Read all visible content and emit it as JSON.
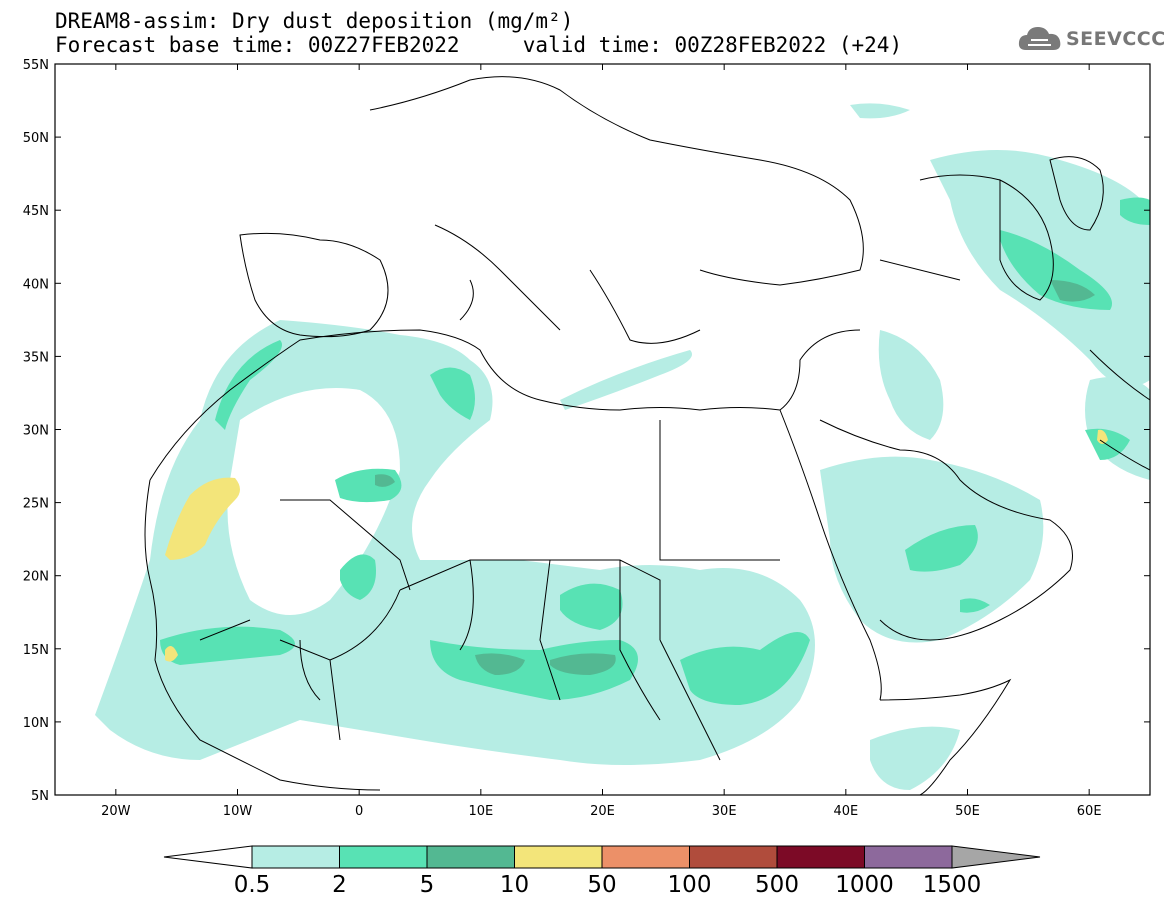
{
  "title_line1": "DREAM8-assim: Dry dust deposition (mg/m²)",
  "title_line2": "Forecast base time: 00Z27FEB2022     valid time: 00Z28FEB2022 (+24)",
  "logo": {
    "text": "SEEVCCC",
    "icon": "cloud-icon"
  },
  "map": {
    "lon_range": [
      -25,
      65
    ],
    "lat_range": [
      5,
      55
    ],
    "lat_labels": [
      "55N",
      "50N",
      "45N",
      "40N",
      "35N",
      "30N",
      "25N",
      "20N",
      "15N",
      "10N",
      "5N"
    ],
    "lon_labels": [
      "20W",
      "10W",
      "0",
      "10E",
      "20E",
      "30E",
      "40E",
      "50E",
      "60E"
    ]
  },
  "legend": {
    "labels": [
      "0.5",
      "2",
      "5",
      "10",
      "50",
      "100",
      "500",
      "1000",
      "1500"
    ],
    "colors": [
      "#b6ede4",
      "#58e2b4",
      "#53b892",
      "#f3e57a",
      "#ec9068",
      "#b04c3c",
      "#7c0a26",
      "#8d699c"
    ],
    "low_color": "#ffffff",
    "high_color": "#a6a6a6"
  }
}
